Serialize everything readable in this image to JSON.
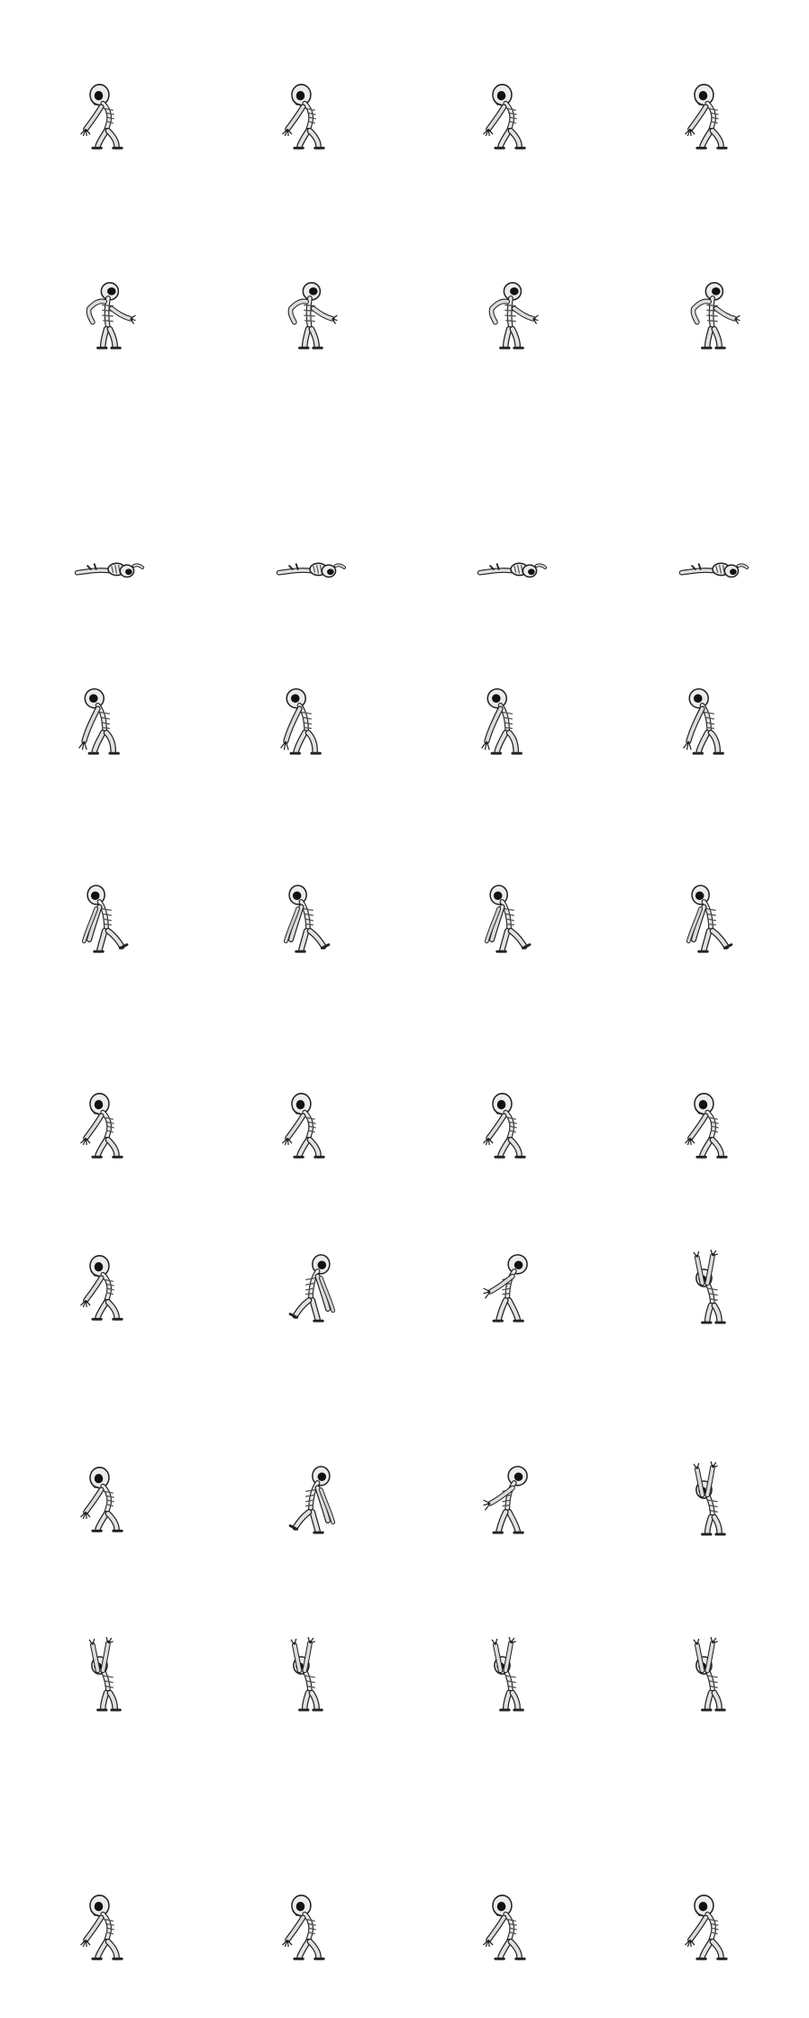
{
  "sprite_sheet": {
    "subject": "skeleton",
    "background": "#ffffff",
    "palette": {
      "bone": "#e9e9e9",
      "bone_shadow": "#9a9a9a",
      "outline": "#222222",
      "eye": "#111111"
    },
    "columns": 4,
    "rows": [
      {
        "pose": "idle-hunched",
        "frames": 4
      },
      {
        "pose": "arm-swing",
        "frames": 4
      },
      {
        "pose": "collapsed",
        "frames": 4
      },
      {
        "pose": "hunched-walk",
        "frames": 4
      },
      {
        "pose": "hunched-step",
        "frames": 4
      },
      {
        "pose": "idle-hunched",
        "frames": 4
      },
      {
        "pose": "attack-raise",
        "frames": 4
      },
      {
        "pose": "attack-raise",
        "frames": 4
      },
      {
        "pose": "arms-up",
        "frames": 4
      },
      {
        "pose": "idle-hunched",
        "frames": 4
      }
    ]
  }
}
